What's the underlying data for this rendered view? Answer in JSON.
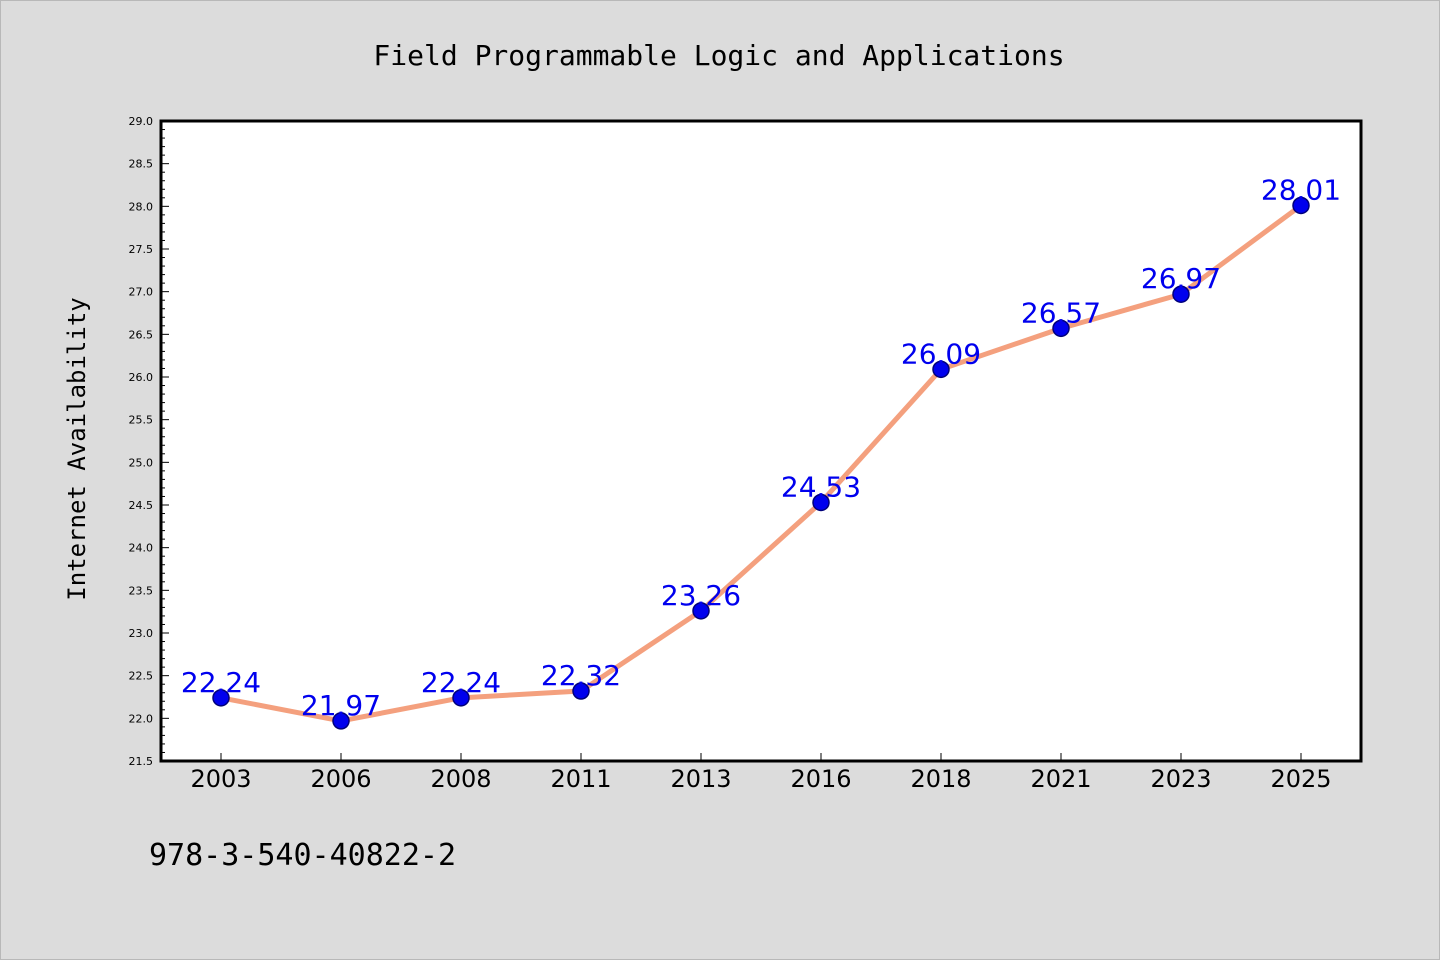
{
  "chart_data": {
    "type": "line",
    "title": "Field Programmable Logic and Applications",
    "xlabel": "",
    "ylabel": "Internet Availability",
    "categories": [
      "2003",
      "2006",
      "2008",
      "2011",
      "2013",
      "2016",
      "2018",
      "2021",
      "2023",
      "2025"
    ],
    "values": [
      22.24,
      21.97,
      22.24,
      22.32,
      23.26,
      24.53,
      26.09,
      26.57,
      26.97,
      28.01
    ],
    "data_labels": [
      "22.24",
      "21.97",
      "22.24",
      "22.32",
      "23.26",
      "24.53",
      "26.09",
      "26.57",
      "26.97",
      "28.01"
    ],
    "ylim": [
      21.5,
      29.0
    ],
    "y_ticks": [
      "21.5",
      "22.0",
      "22.5",
      "23.0",
      "23.5",
      "24.0",
      "24.5",
      "25.0",
      "25.5",
      "26.0",
      "26.5",
      "27.0",
      "27.5",
      "28.0",
      "28.5",
      "29.0"
    ],
    "grid": false,
    "legend": "none",
    "colors": {
      "line": "#f4a07e",
      "marker": "#0000ee",
      "marker_edge": "#00007a",
      "data_label": "#0000ee",
      "background": "#dcdcdc",
      "plot_background": "#ffffff",
      "axis": "#000000"
    }
  },
  "footer": {
    "isbn": "978-3-540-40822-2"
  }
}
